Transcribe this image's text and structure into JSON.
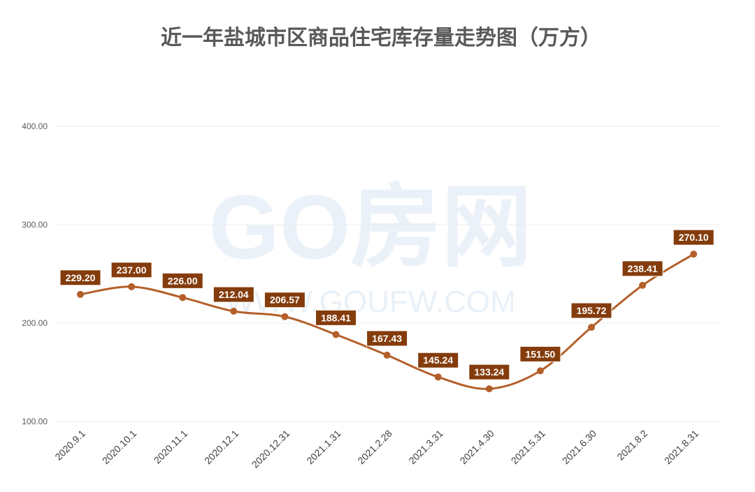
{
  "chart_data": {
    "type": "line",
    "title": "近一年盐城市区商品住宅库存量走势图（万方）",
    "categories": [
      "2020.9.1",
      "2020.10.1",
      "2020.11.1",
      "2020.12.1",
      "2020.12.31",
      "2021.1.31",
      "2021.2.28",
      "2021.3.31",
      "2021.4.30",
      "2021.5.31",
      "2021.6.30",
      "2021.8.2",
      "2021.8.31"
    ],
    "values": [
      229.2,
      237.0,
      226.0,
      212.04,
      206.57,
      188.41,
      167.43,
      145.24,
      133.24,
      151.5,
      195.72,
      238.41,
      270.1
    ],
    "data_labels": [
      "229.20",
      "237.00",
      "226.00",
      "212.04",
      "206.57",
      "188.41",
      "167.43",
      "145.24",
      "133.24",
      "151.50",
      "195.72",
      "238.41",
      "270.10"
    ],
    "yticks": [
      "100.00",
      "200.00",
      "300.00",
      "400.00"
    ],
    "ylim": [
      100,
      400
    ],
    "grid": true,
    "smooth": true,
    "line_color": "#b45f2a",
    "label_bg_color": "#843c0c",
    "watermark": [
      "GO房网",
      "WWW.GOUFW.COM"
    ]
  }
}
